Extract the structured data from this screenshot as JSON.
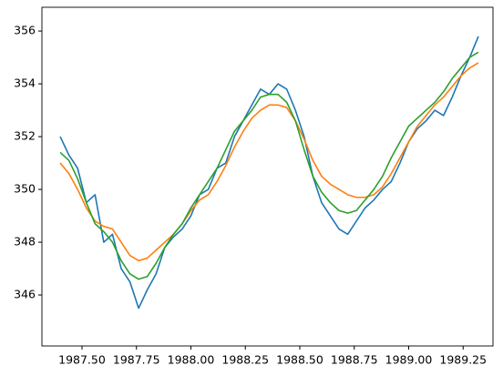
{
  "chart_data": {
    "type": "line",
    "x": [
      1987.4,
      1987.44,
      1987.48,
      1987.52,
      1987.56,
      1987.6,
      1987.64,
      1987.68,
      1987.72,
      1987.76,
      1987.8,
      1987.84,
      1987.88,
      1987.92,
      1987.96,
      1988.0,
      1988.04,
      1988.08,
      1988.12,
      1988.16,
      1988.2,
      1988.24,
      1988.28,
      1988.32,
      1988.36,
      1988.4,
      1988.44,
      1988.48,
      1988.52,
      1988.56,
      1988.6,
      1988.64,
      1988.68,
      1988.72,
      1988.76,
      1988.8,
      1988.84,
      1988.88,
      1988.92,
      1988.96,
      1989.0,
      1989.04,
      1989.08,
      1989.12,
      1989.16,
      1989.2,
      1989.24,
      1989.28,
      1989.32
    ],
    "series": [
      {
        "color": "#1f77b4",
        "values": [
          352.0,
          351.3,
          350.8,
          349.5,
          349.8,
          348.0,
          348.3,
          347.0,
          346.5,
          345.5,
          346.2,
          346.8,
          347.8,
          348.2,
          348.5,
          349.0,
          349.8,
          350.0,
          350.8,
          351.0,
          352.0,
          352.6,
          353.2,
          353.8,
          353.6,
          354.0,
          353.8,
          353.0,
          352.0,
          350.5,
          349.5,
          349.0,
          348.5,
          348.3,
          348.8,
          349.3,
          349.6,
          350.0,
          350.3,
          351.0,
          351.8,
          352.3,
          352.6,
          353.0,
          352.8,
          353.5,
          354.3,
          355.0,
          355.8
        ]
      },
      {
        "color": "#ff7f0e",
        "values": [
          351.0,
          350.6,
          350.0,
          349.3,
          348.8,
          348.6,
          348.5,
          348.0,
          347.5,
          347.3,
          347.4,
          347.7,
          348.0,
          348.3,
          348.7,
          349.2,
          349.6,
          349.8,
          350.3,
          350.9,
          351.6,
          352.2,
          352.7,
          353.0,
          353.2,
          353.2,
          353.1,
          352.6,
          351.9,
          351.1,
          350.5,
          350.2,
          350.0,
          349.8,
          349.7,
          349.7,
          349.8,
          350.1,
          350.6,
          351.2,
          351.8,
          352.4,
          352.8,
          353.2,
          353.5,
          353.9,
          354.3,
          354.6,
          354.8
        ]
      },
      {
        "color": "#2ca02c",
        "values": [
          351.4,
          351.1,
          350.4,
          349.5,
          348.7,
          348.4,
          348.0,
          347.3,
          346.8,
          346.6,
          346.7,
          347.2,
          347.8,
          348.3,
          348.7,
          349.3,
          349.8,
          350.3,
          350.8,
          351.5,
          352.2,
          352.6,
          353.0,
          353.5,
          353.6,
          353.6,
          353.3,
          352.6,
          351.5,
          350.5,
          349.9,
          349.5,
          349.2,
          349.1,
          349.2,
          349.6,
          350.0,
          350.5,
          351.2,
          351.8,
          352.4,
          352.7,
          353.0,
          353.3,
          353.7,
          354.2,
          354.6,
          355.0,
          355.2
        ]
      }
    ],
    "xlim": [
      1987.316,
      1989.387
    ],
    "xticks": [
      {
        "value": 1987.5,
        "label": "1987.50"
      },
      {
        "value": 1987.75,
        "label": "1987.75"
      },
      {
        "value": 1988.0,
        "label": "1988.00"
      },
      1988.25,
      {
        "value": 1988.5,
        "label": "1988.50"
      },
      1988.75,
      {
        "value": 1989.0,
        "label": "1989.00"
      },
      1989.25
    ],
    "ylim": [
      344.07,
      356.9
    ],
    "yticks": [
      346,
      348,
      350,
      352,
      354,
      356
    ]
  }
}
